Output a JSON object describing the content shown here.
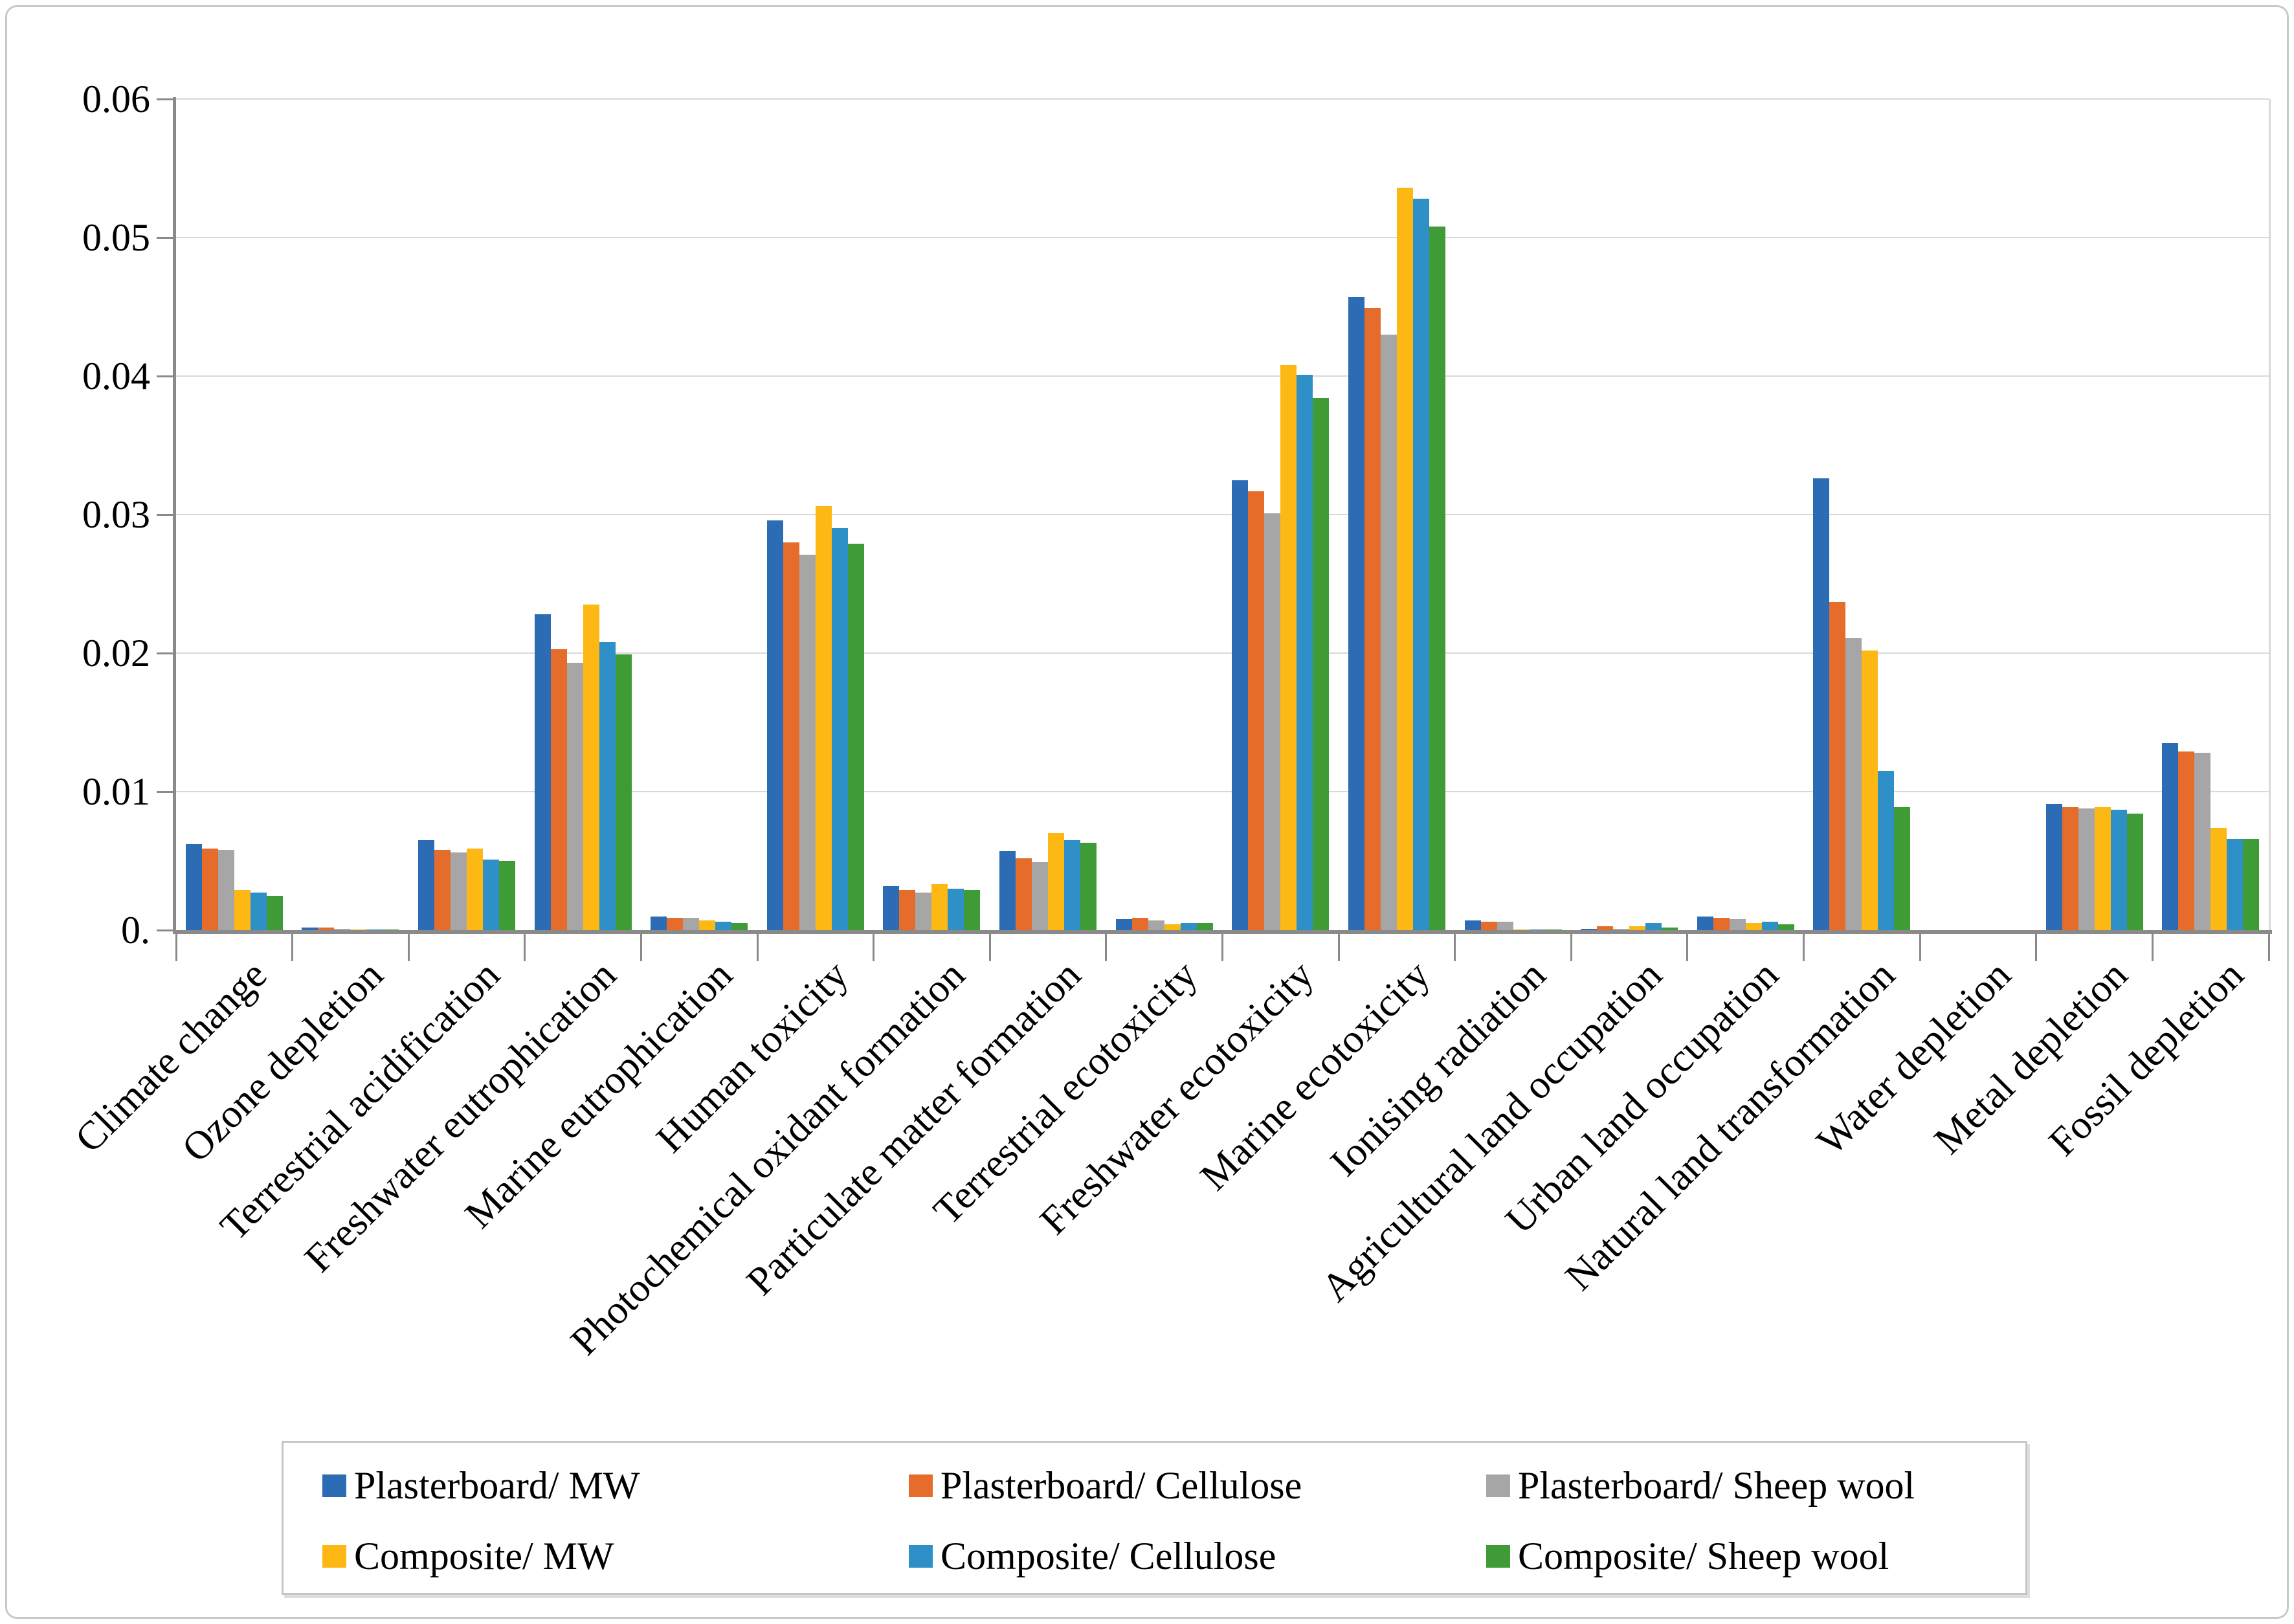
{
  "figure": {
    "background": "#ffffff",
    "outer_border_color": "#c9c9c9",
    "axis_color": "#8a8a8a",
    "gridline_color": "#d9d9d9",
    "text_color": "#000000"
  },
  "chart_data": {
    "type": "bar",
    "title": "",
    "xlabel": "",
    "ylabel": "",
    "grid": "horizontal",
    "legend_position": "bottom",
    "categories": [
      "Climate change",
      "Ozone depletion",
      "Terrestrial acidification",
      "Freshwater eutrophication",
      "Marine eutrophication",
      "Human toxicity",
      "Photochemical oxidant formation",
      "Particulate matter formation",
      "Terrestrial ecotoxicity",
      "Freshwater ecotoxicity",
      "Marine ecotoxicity",
      "Ionising radiation",
      "Agricultural land occupation",
      "Urban land occupation",
      "Natural land transformation",
      "Water depletion",
      "Metal depletion",
      "Fossil depletion"
    ],
    "series": [
      {
        "name": "Plasterboard/ MW",
        "color": "#2b6cb4",
        "values": [
          0.0062,
          0.0002,
          0.0065,
          0.0228,
          0.001,
          0.0296,
          0.0032,
          0.0057,
          0.0008,
          0.0325,
          0.0457,
          0.0007,
          0.0001,
          0.001,
          0.0326,
          0,
          0.0091,
          0.0135
        ]
      },
      {
        "name": "Plasterboard/ Cellulose",
        "color": "#e66c2c",
        "values": [
          0.0059,
          0.0002,
          0.0058,
          0.0203,
          0.0009,
          0.028,
          0.0029,
          0.0052,
          0.0009,
          0.0317,
          0.0449,
          0.0006,
          0.0003,
          0.0009,
          0.0237,
          0,
          0.0089,
          0.0129
        ]
      },
      {
        "name": "Plasterboard/ Sheep wool",
        "color": "#a6a6a6",
        "values": [
          0.0058,
          0.0001,
          0.0056,
          0.0193,
          0.0009,
          0.0271,
          0.0027,
          0.0049,
          0.0007,
          0.0301,
          0.043,
          0.0006,
          0.0001,
          0.0008,
          0.0211,
          0,
          0.0088,
          0.0128
        ]
      },
      {
        "name": "Composite/ MW",
        "color": "#fdb813",
        "values": [
          0.0029,
          5e-05,
          0.0059,
          0.0235,
          0.0007,
          0.0306,
          0.0033,
          0.007,
          0.0004,
          0.0408,
          0.0536,
          5e-05,
          0.0003,
          0.0005,
          0.0202,
          0,
          0.0089,
          0.0074
        ]
      },
      {
        "name": "Composite/ Cellulose",
        "color": "#2e90c7",
        "values": [
          0.0027,
          5e-05,
          0.0051,
          0.0208,
          0.0006,
          0.029,
          0.003,
          0.0065,
          0.0005,
          0.0401,
          0.0528,
          5e-05,
          0.0005,
          0.0006,
          0.0115,
          0,
          0.0087,
          0.0066
        ]
      },
      {
        "name": "Composite/ Sheep wool",
        "color": "#3f9b35",
        "values": [
          0.0025,
          5e-05,
          0.005,
          0.0199,
          0.0005,
          0.0279,
          0.0029,
          0.0063,
          0.0005,
          0.0384,
          0.0508,
          5e-05,
          0.0002,
          0.0004,
          0.0089,
          0,
          0.0084,
          0.0066
        ]
      }
    ],
    "y_axis": {
      "min": 0,
      "max": 0.06,
      "tick_interval": 0.01,
      "tick_labels_bottom_to_top": [
        "0.",
        "0.01",
        "0.02",
        "0.03",
        "0.04",
        "0.05",
        "0.06"
      ]
    }
  }
}
